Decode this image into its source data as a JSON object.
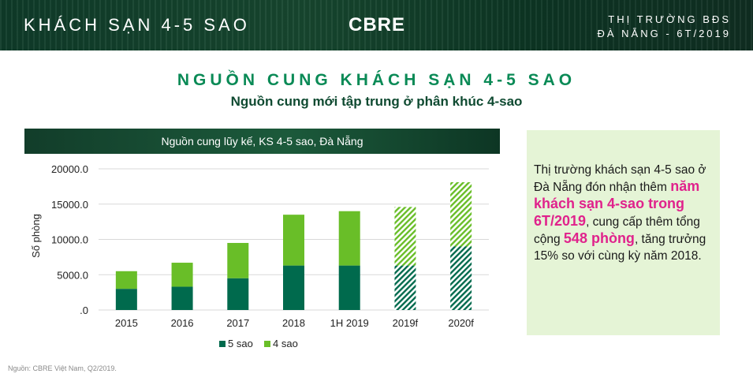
{
  "header": {
    "section": "KHÁCH SẠN 4-5 SAO",
    "logo": "CBRE",
    "market_line1": "THỊ TRƯỜNG BĐS",
    "market_line2": "ĐÀ NẴNG - 6T/2019"
  },
  "title": "NGUỒN CUNG KHÁCH SẠN 4-5 SAO",
  "subtitle": "Nguồn cung mới tập trung ở phân khúc 4-sao",
  "chart_banner": "Nguồn cung lũy kế, KS 4-5 sao, Đà Nẵng",
  "chart_data": {
    "type": "bar",
    "stacked": true,
    "categories": [
      "2015",
      "2016",
      "2017",
      "2018",
      "1H 2019",
      "2019f",
      "2020f"
    ],
    "forecast_categories": [
      "2019f",
      "2020f"
    ],
    "series": [
      {
        "name": "5 sao",
        "color": "#006a4d",
        "values": [
          3000,
          3300,
          4500,
          6300,
          6300,
          6300,
          9000
        ]
      },
      {
        "name": "4 sao",
        "color": "#69be28",
        "values": [
          2500,
          3400,
          5000,
          7200,
          7700,
          8300,
          9100
        ]
      }
    ],
    "ylabel": "Số phòng",
    "ylim": [
      0,
      20000
    ],
    "yticks": [
      "20000.0",
      "15000.0",
      "10000.0",
      "5000.0",
      ".0"
    ],
    "grid": true,
    "legend": "bottom"
  },
  "source": "Nguồn: CBRE Việt Nam, Q2/2019.",
  "note": {
    "part1": "Thị trường khách sạn 4-5 sao ở Đà Nẵng đón nhận thêm ",
    "highlight1": "năm khách sạn 4-sao trong 6T/2019",
    "part2": ", cung cấp thêm tổng cộng ",
    "highlight2": "548 phòng",
    "part3": ", tăng trưởng 15% so với cùng kỳ năm 2018."
  }
}
